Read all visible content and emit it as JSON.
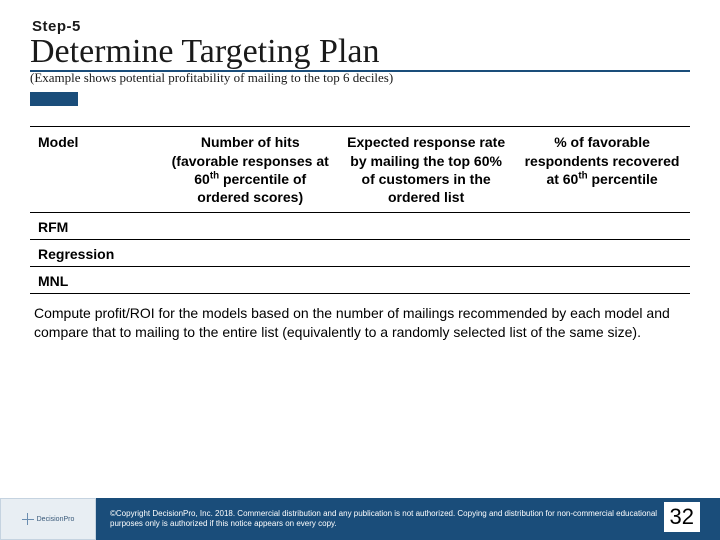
{
  "step_label": "Step-5",
  "title": "Determine Targeting Plan",
  "subtitle": "(Example shows potential profitability of mailing to the top 6 deciles)",
  "table": {
    "headers": {
      "c0": "Model",
      "c1": "Number of hits (favorable responses at 60th percentile of ordered scores)",
      "c2": "Expected response rate by mailing the top 60% of customers in the ordered list",
      "c3": "% of favorable respondents recovered at 60th percentile"
    },
    "rows": {
      "r0": "RFM",
      "r1": "Regression",
      "r2": "MNL"
    }
  },
  "note": "Compute profit/ROI for the models based on the number of mailings recommended by each model and compare that to mailing to the entire list (equivalently to a randomly selected list of the same size).",
  "footer": {
    "logo_text": "DecisionPro",
    "copyright": "©Copyright DecisionPro, Inc. 2018. Commercial distribution and any publication is not authorized. Copying and distribution for non-commercial educational purposes only is authorized if this notice appears on every copy."
  },
  "page_number": "32",
  "colors": {
    "accent": "#1a4d7a",
    "footer_logo_bg": "#e8eef3",
    "background": "#ffffff"
  }
}
